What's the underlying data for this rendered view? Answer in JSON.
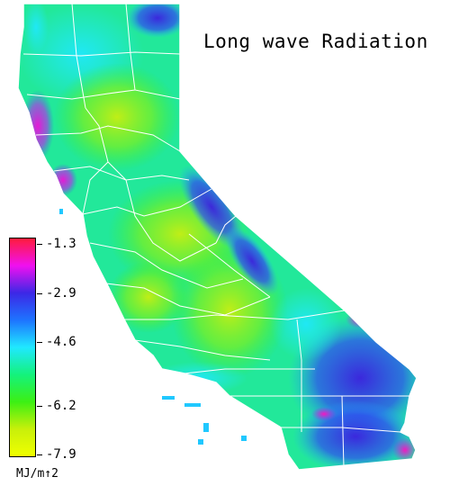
{
  "map": {
    "title": "Long wave Radiation"
  },
  "legend": {
    "units": "MJ/m↑2",
    "ticks": [
      "-1.3",
      "-2.9",
      "-4.6",
      "-6.2",
      "-7.9"
    ],
    "colors": [
      "#ff1c3c",
      "#f010f0",
      "#3c28e6",
      "#1e74ff",
      "#20e8ff",
      "#14f27c",
      "#3cf014",
      "#c8f00a",
      "#f0ff00"
    ]
  }
}
